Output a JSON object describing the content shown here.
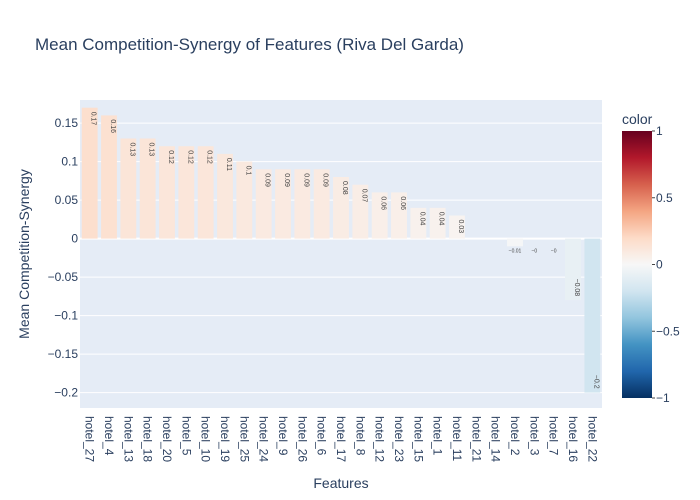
{
  "chart_data": {
    "type": "bar",
    "title": "Mean Competition-Synergy of Features (Riva Del Garda)",
    "xlabel": "Features",
    "ylabel": "Mean Competition-Synergy",
    "ylim": [
      -0.22,
      0.18
    ],
    "yticks": [
      0.15,
      0.1,
      0.05,
      0,
      -0.05,
      -0.1,
      -0.15,
      -0.2
    ],
    "ytick_labels": [
      "0.15",
      "0.1",
      "0.05",
      "0",
      "−0.05",
      "−0.1",
      "−0.15",
      "−0.2"
    ],
    "categories": [
      "hotel_27",
      "hotel_4",
      "hotel_13",
      "hotel_18",
      "hotel_20",
      "hotel_5",
      "hotel_10",
      "hotel_19",
      "hotel_25",
      "hotel_24",
      "hotel_9",
      "hotel_26",
      "hotel_6",
      "hotel_17",
      "hotel_8",
      "hotel_12",
      "hotel_23",
      "hotel_15",
      "hotel_1",
      "hotel_11",
      "hotel_21",
      "hotel_14",
      "hotel_2",
      "hotel_3",
      "hotel_7",
      "hotel_16",
      "hotel_22"
    ],
    "values": [
      0.17,
      0.16,
      0.13,
      0.13,
      0.12,
      0.12,
      0.12,
      0.11,
      0.1,
      0.09,
      0.09,
      0.09,
      0.09,
      0.08,
      0.07,
      0.06,
      0.06,
      0.04,
      0.04,
      0.03,
      0.0,
      0.0,
      -0.01,
      -0.0,
      -0.0,
      -0.08,
      -0.2
    ],
    "bar_labels": [
      "0.17",
      "0.16",
      "0.13",
      "0.13",
      "0.12",
      "0.12",
      "0.12",
      "0.11",
      "0.1",
      "0.09",
      "0.09",
      "0.09",
      "0.09",
      "0.08",
      "0.07",
      "0.06",
      "0.06",
      "0.04",
      "0.04",
      "0.03",
      "",
      "",
      "−0.01",
      "−0",
      "−0",
      "−0.08",
      "−0.2"
    ],
    "grid": true,
    "colorbar": {
      "title": "color",
      "range": [
        -1,
        1
      ],
      "ticks": [
        1,
        0.5,
        0,
        -0.5,
        -1
      ],
      "tick_labels": [
        "1",
        "0.5",
        "0",
        "−0.5",
        "−1"
      ],
      "colorscale": [
        "#053061",
        "#2166ac",
        "#4393c3",
        "#92c5de",
        "#d1e5f0",
        "#f7f7f7",
        "#fddbc7",
        "#f4a582",
        "#d6604d",
        "#b2182b",
        "#67001f"
      ]
    },
    "colors": {
      "plot_bg": "#e5ecf6",
      "grid": "#ffffff",
      "text": "#2a3f5f"
    }
  }
}
